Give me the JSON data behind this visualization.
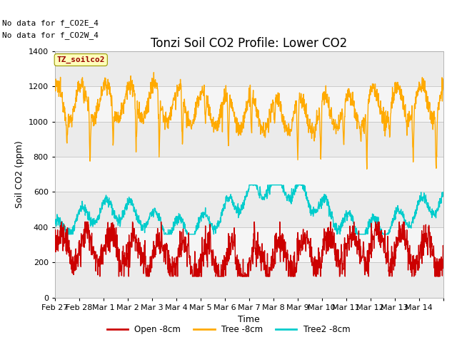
{
  "title": "Tonzi Soil CO2 Profile: Lower CO2",
  "xlabel": "Time",
  "ylabel": "Soil CO2 (ppm)",
  "annotation_lines": [
    "No data for f_CO2E_4",
    "No data for f_CO2W_4"
  ],
  "watermark": "TZ_soilco2",
  "xlim_days": [
    0,
    16
  ],
  "ylim": [
    0,
    1400
  ],
  "yticks": [
    0,
    200,
    400,
    600,
    800,
    1000,
    1200,
    1400
  ],
  "date_labels": [
    "Feb 27",
    "Feb 28",
    "Mar 1",
    "Mar 2",
    "Mar 3",
    "Mar 4",
    "Mar 5",
    "Mar 6",
    "Mar 7",
    "Mar 8",
    "Mar 9",
    "Mar 10",
    "Mar 11",
    "Mar 12",
    "Mar 13",
    "Mar 14"
  ],
  "color_open": "#cc0000",
  "color_tree": "#ffaa00",
  "color_tree2": "#00cccc",
  "color_bg_light": "#ebebeb",
  "color_bg_white": "#f5f5f5",
  "legend_labels": [
    "Open -8cm",
    "Tree -8cm",
    "Tree2 -8cm"
  ],
  "linewidth": 1.0,
  "title_fontsize": 12,
  "axis_fontsize": 9,
  "tick_fontsize": 8
}
